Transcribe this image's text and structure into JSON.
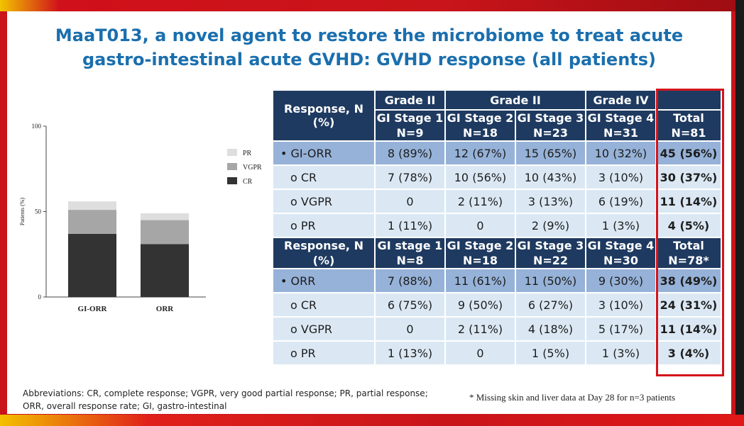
{
  "slide": {
    "title_line1": "MaaT013, a novel agent to restore the microbiome to treat acute",
    "title_line2": "gastro-intestinal acute GVHD: GVHD response (all patients)",
    "abbreviations_line1": "Abbreviations: CR, complete response; VGPR, very good partial response; PR, partial response;",
    "abbreviations_line2": "ORR, overall response rate; GI, gastro-intestinal",
    "footnote": "* Missing skin and liver data at Day 28 for n=3 patients"
  },
  "colors": {
    "header": "#1f3a60",
    "row_dark": "#96b2d8",
    "row_light": "#dbe8f4",
    "highlight": "#d4141b",
    "cr": "#333333",
    "vgpr": "#a6a6a6",
    "pr": "#dedede"
  },
  "chart_data": {
    "type": "bar",
    "stacked": true,
    "categories": [
      "GI-ORR",
      "ORR"
    ],
    "series": [
      {
        "name": "CR",
        "values": [
          37,
          31
        ]
      },
      {
        "name": "VGPR",
        "values": [
          14,
          14
        ]
      },
      {
        "name": "PR",
        "values": [
          5,
          4
        ]
      }
    ],
    "ylabel": "Patients (%)",
    "ylim": [
      0,
      100
    ],
    "yticks": [
      "0",
      "50",
      "100"
    ],
    "legend": "right",
    "legend_order": [
      "PR",
      "VGPR",
      "CR"
    ]
  },
  "table": {
    "header": {
      "response_label": "Response, N (%)",
      "grades": [
        "Grade II",
        "Grade II",
        "Grade IV"
      ],
      "stages1": [
        {
          "stage": "GI Stage 1",
          "n": "N=9"
        },
        {
          "stage": "GI Stage 2",
          "n": "N=18"
        },
        {
          "stage": "GI Stage 3",
          "n": "N=23"
        },
        {
          "stage": "GI Stage 4",
          "n": "N=31"
        }
      ],
      "total1": {
        "label": "Total",
        "n": "N=81"
      },
      "stages2": [
        {
          "stage": "GI stage 1",
          "n": "N=8"
        },
        {
          "stage": "GI Stage 2",
          "n": "N=18"
        },
        {
          "stage": "GI Stage 3",
          "n": "N=22"
        },
        {
          "stage": "GI Stage 4",
          "n": "N=30"
        }
      ],
      "total2": {
        "label": "Total",
        "n": "N=78*"
      }
    },
    "section1": [
      {
        "label": "• GI-ORR",
        "cells": [
          "8 (89%)",
          "12 (67%)",
          "15 (65%)",
          "10 (32%)"
        ],
        "total": "45 (56%)"
      },
      {
        "label": "o CR",
        "cells": [
          "7 (78%)",
          "10 (56%)",
          "10 (43%)",
          "3 (10%)"
        ],
        "total": "30 (37%)"
      },
      {
        "label": "o VGPR",
        "cells": [
          "0",
          "2 (11%)",
          "3 (13%)",
          "6 (19%)"
        ],
        "total": "11 (14%)"
      },
      {
        "label": "o PR",
        "cells": [
          "1 (11%)",
          "0",
          "2 (9%)",
          "1 (3%)"
        ],
        "total": "4 (5%)"
      }
    ],
    "section2": [
      {
        "label": "• ORR",
        "cells": [
          "7 (88%)",
          "11 (61%)",
          "11 (50%)",
          "9 (30%)"
        ],
        "total": "38 (49%)"
      },
      {
        "label": "o CR",
        "cells": [
          "6 (75%)",
          "9 (50%)",
          "6 (27%)",
          "3 (10%)"
        ],
        "total": "24 (31%)"
      },
      {
        "label": "o VGPR",
        "cells": [
          "0",
          "2 (11%)",
          "4 (18%)",
          "5 (17%)"
        ],
        "total": "11 (14%)"
      },
      {
        "label": "o PR",
        "cells": [
          "1 (13%)",
          "0",
          "1 (5%)",
          "1 (3%)"
        ],
        "total": "3 (4%)"
      }
    ]
  }
}
